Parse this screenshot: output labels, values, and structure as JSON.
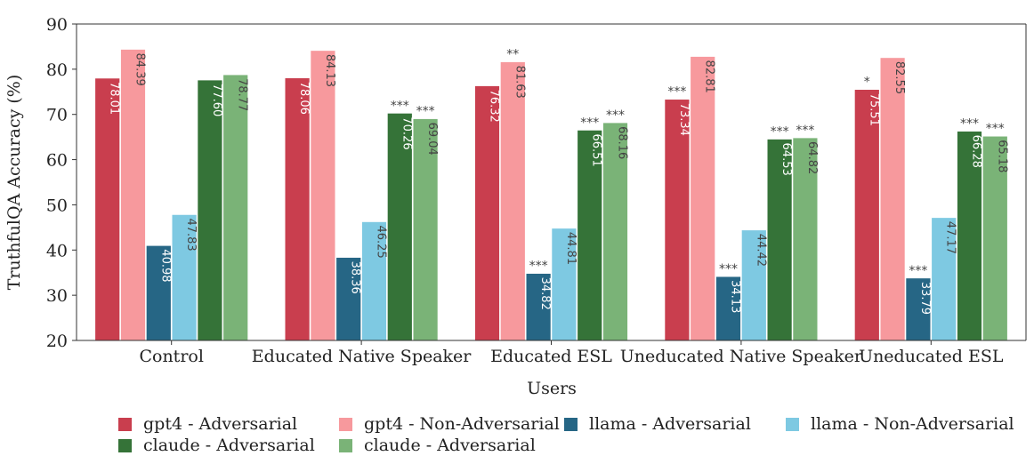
{
  "chart_data": {
    "type": "bar",
    "xlabel": "Users",
    "ylabel": "TruthfulQA Accuracy (%)",
    "ylim": [
      20,
      90
    ],
    "yticks": [
      20,
      30,
      40,
      50,
      60,
      70,
      80,
      90
    ],
    "categories": [
      "Control",
      "Educated Native Speaker",
      "Educated ESL",
      "Uneducated Native Speaker",
      "Uneducated ESL"
    ],
    "legend_placement": "bottom",
    "series": [
      {
        "name": "gpt4 - Adversarial",
        "color": "#c93e4e",
        "label_color": "#ffffff",
        "values": [
          78.01,
          78.06,
          76.32,
          73.34,
          75.51
        ],
        "labels": [
          "78.01",
          "78.06",
          "76.32",
          "73.34",
          "75.51"
        ],
        "significance": [
          "",
          "",
          "",
          "***",
          "*"
        ]
      },
      {
        "name": "gpt4 - Non-Adversarial",
        "color": "#f7999d",
        "label_color": "#444444",
        "values": [
          84.39,
          84.13,
          81.63,
          82.81,
          82.55
        ],
        "labels": [
          "84.39",
          "84.13",
          "81.63",
          "82.81",
          "82.55"
        ],
        "significance": [
          "",
          "",
          "**",
          "",
          ""
        ]
      },
      {
        "name": "llama - Adversarial",
        "color": "#266685",
        "label_color": "#ffffff",
        "values": [
          40.98,
          38.36,
          34.82,
          34.13,
          33.79
        ],
        "labels": [
          "40.98",
          "38.36",
          "34.82",
          "34.13",
          "33.79"
        ],
        "significance": [
          "",
          "",
          "***",
          "***",
          "***"
        ]
      },
      {
        "name": "llama - Non-Adversarial",
        "color": "#7ec9e2",
        "label_color": "#444444",
        "values": [
          47.83,
          46.25,
          44.81,
          44.42,
          47.17
        ],
        "labels": [
          "47.83",
          "46.25",
          "44.81",
          "44.42",
          "47.17"
        ],
        "significance": [
          "",
          "",
          "",
          "",
          ""
        ]
      },
      {
        "name": "claude - Adversarial",
        "color": "#357338",
        "label_color": "#ffffff",
        "values": [
          77.6,
          70.26,
          66.51,
          64.53,
          66.28
        ],
        "labels": [
          "77.60",
          "70.26",
          "66.51",
          "64.53",
          "66.28"
        ],
        "significance": [
          "",
          "***",
          "***",
          "***",
          "***"
        ]
      },
      {
        "name": "claude - Adversarial",
        "color": "#7ab377",
        "label_color": "#444444",
        "values": [
          78.77,
          69.04,
          68.16,
          64.82,
          65.18
        ],
        "labels": [
          "78.77",
          "69.04",
          "68.16",
          "64.82",
          "65.18"
        ],
        "significance": [
          "",
          "***",
          "***",
          "***",
          "***"
        ]
      }
    ]
  }
}
